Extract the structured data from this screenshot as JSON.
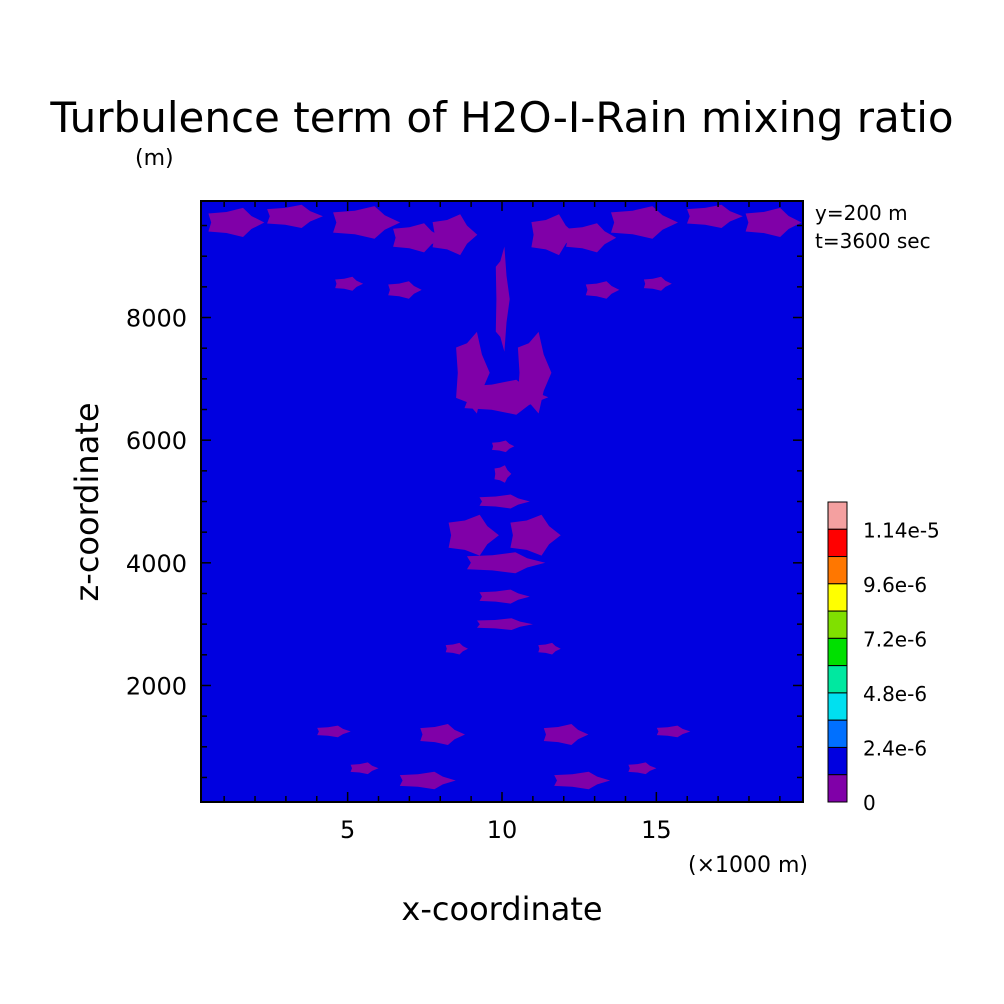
{
  "chart_data": {
    "type": "heatmap",
    "title": "Turbulence term of H2O-I-Rain mixing ratio",
    "title_unit": "(m)",
    "xlabel": "x-coordinate",
    "ylabel": "z-coordinate",
    "x_unit_label": "(×1000 m)",
    "xlim": [
      0.25,
      19.75
    ],
    "ylim": [
      100,
      9900
    ],
    "x_ticks": [
      5,
      10,
      15
    ],
    "x_tick_labels": [
      "5",
      "10",
      "15"
    ],
    "y_ticks": [
      2000,
      4000,
      6000,
      8000
    ],
    "y_tick_labels": [
      "2000",
      "4000",
      "6000",
      "8000"
    ],
    "info": [
      "y=200 m",
      "t=3600 sec"
    ],
    "grid": false,
    "legend_position": "right",
    "colorbar": {
      "levels": [
        "1.14e-5",
        "9.6e-6",
        "7.2e-6",
        "4.8e-6",
        "2.4e-6",
        "0"
      ],
      "colors": [
        "#f4a0a0",
        "#ff0000",
        "#ff7700",
        "#ffff00",
        "#80e000",
        "#00e000",
        "#00e8a0",
        "#00e0f0",
        "#0070ff",
        "#0000e0",
        "#8000a8"
      ]
    },
    "background_color": "#0000e0",
    "negative_color": "#8000a8",
    "negative_regions": [
      {
        "x": 1.3,
        "z": 9550,
        "rx": 1.0,
        "rz": 250
      },
      {
        "x": 3.2,
        "z": 9650,
        "rx": 1.0,
        "rz": 200
      },
      {
        "x": 5.5,
        "z": 9550,
        "rx": 1.2,
        "rz": 280
      },
      {
        "x": 7.2,
        "z": 9300,
        "rx": 0.9,
        "rz": 250
      },
      {
        "x": 8.4,
        "z": 9350,
        "rx": 0.8,
        "rz": 350
      },
      {
        "x": 11.6,
        "z": 9350,
        "rx": 0.8,
        "rz": 350
      },
      {
        "x": 12.8,
        "z": 9300,
        "rx": 0.9,
        "rz": 250
      },
      {
        "x": 14.5,
        "z": 9550,
        "rx": 1.2,
        "rz": 280
      },
      {
        "x": 16.8,
        "z": 9650,
        "rx": 1.0,
        "rz": 200
      },
      {
        "x": 18.7,
        "z": 9550,
        "rx": 1.0,
        "rz": 250
      },
      {
        "x": 5.0,
        "z": 8550,
        "rx": 0.5,
        "rz": 120
      },
      {
        "x": 6.8,
        "z": 8450,
        "rx": 0.6,
        "rz": 150
      },
      {
        "x": 13.2,
        "z": 8450,
        "rx": 0.6,
        "rz": 150
      },
      {
        "x": 15.0,
        "z": 8550,
        "rx": 0.5,
        "rz": 120
      },
      {
        "x": 10.0,
        "z": 8300,
        "rx": 0.25,
        "rz": 900
      },
      {
        "x": 9.0,
        "z": 7100,
        "rx": 0.6,
        "rz": 700
      },
      {
        "x": 11.0,
        "z": 7100,
        "rx": 0.6,
        "rz": 700
      },
      {
        "x": 10.0,
        "z": 6700,
        "rx": 1.5,
        "rz": 300
      },
      {
        "x": 10.0,
        "z": 5900,
        "rx": 0.4,
        "rz": 100
      },
      {
        "x": 10.0,
        "z": 5450,
        "rx": 0.3,
        "rz": 150
      },
      {
        "x": 10.0,
        "z": 5000,
        "rx": 0.9,
        "rz": 120
      },
      {
        "x": 9.0,
        "z": 4450,
        "rx": 0.9,
        "rz": 350
      },
      {
        "x": 11.0,
        "z": 4450,
        "rx": 0.9,
        "rz": 350
      },
      {
        "x": 10.0,
        "z": 4000,
        "rx": 1.4,
        "rz": 180
      },
      {
        "x": 10.0,
        "z": 3450,
        "rx": 0.9,
        "rz": 120
      },
      {
        "x": 10.0,
        "z": 3000,
        "rx": 1.0,
        "rz": 100
      },
      {
        "x": 8.5,
        "z": 2600,
        "rx": 0.4,
        "rz": 100
      },
      {
        "x": 11.5,
        "z": 2600,
        "rx": 0.4,
        "rz": 100
      },
      {
        "x": 4.5,
        "z": 1250,
        "rx": 0.6,
        "rz": 100
      },
      {
        "x": 8.0,
        "z": 1200,
        "rx": 0.8,
        "rz": 180
      },
      {
        "x": 12.0,
        "z": 1200,
        "rx": 0.8,
        "rz": 180
      },
      {
        "x": 15.5,
        "z": 1250,
        "rx": 0.6,
        "rz": 100
      },
      {
        "x": 7.5,
        "z": 450,
        "rx": 1.0,
        "rz": 150
      },
      {
        "x": 12.5,
        "z": 450,
        "rx": 1.0,
        "rz": 150
      },
      {
        "x": 5.5,
        "z": 650,
        "rx": 0.5,
        "rz": 100
      },
      {
        "x": 14.5,
        "z": 650,
        "rx": 0.5,
        "rz": 100
      }
    ]
  }
}
